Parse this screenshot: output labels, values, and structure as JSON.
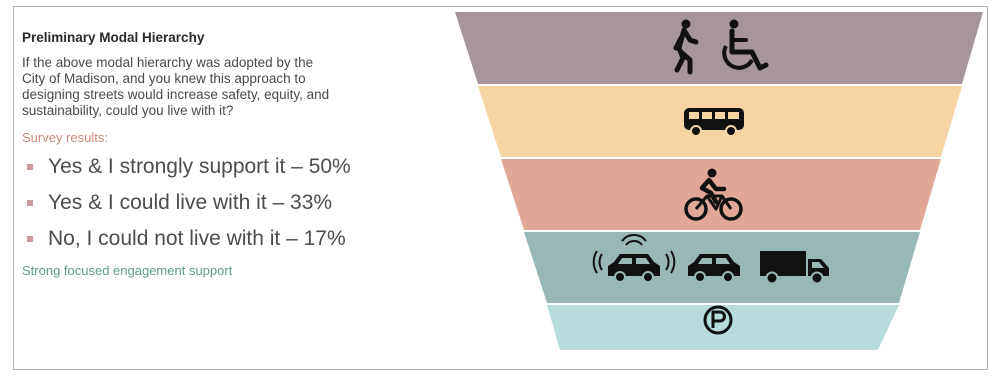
{
  "panel": {
    "title": "Preliminary Modal Hierarchy",
    "question_lines": [
      "If the above modal hierarchy was adopted by the",
      "City of Madison, and you knew this approach to",
      "designing streets would increase safety, equity, and",
      "sustainability, could you live with it?"
    ],
    "survey_label": "Survey results:",
    "results": [
      "Yes & I strongly support it – 50%",
      "Yes & I could live with it – 33%",
      "No, I could not live with it – 17%"
    ],
    "note": "Strong focused engagement support"
  },
  "hierarchy": [
    {
      "level": 1,
      "modes": [
        "pedestrian-icon",
        "wheelchair-icon"
      ],
      "color": "#a7959e"
    },
    {
      "level": 2,
      "modes": [
        "bus-icon"
      ],
      "color": "#f7d4a3"
    },
    {
      "level": 3,
      "modes": [
        "bicycle-icon"
      ],
      "color": "#e1a796"
    },
    {
      "level": 4,
      "modes": [
        "connected-car-icon",
        "car-icon",
        "truck-icon"
      ],
      "color": "#98b8b5"
    },
    {
      "level": 5,
      "modes": [
        "parking-icon"
      ],
      "color": "#b6dcdc"
    }
  ],
  "colors": {
    "icon": "#111111",
    "survey_label": "#c98a78",
    "note": "#5f9b8c",
    "bullet": "#c89a9e"
  }
}
